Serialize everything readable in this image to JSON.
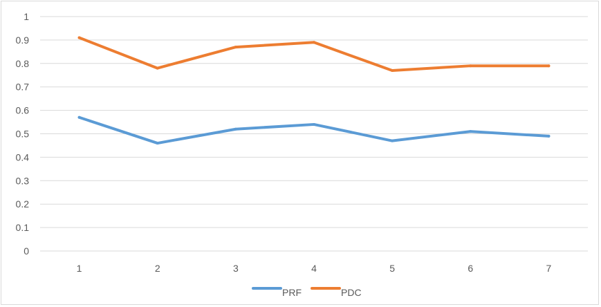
{
  "chart_data": {
    "type": "line",
    "title": "",
    "xlabel": "",
    "ylabel": "",
    "categories": [
      "1",
      "2",
      "3",
      "4",
      "5",
      "6",
      "7"
    ],
    "ylim": [
      0,
      1
    ],
    "yticks": [
      "0",
      "0.1",
      "0.2",
      "0.3",
      "0.4",
      "0.5",
      "0.6",
      "0.7",
      "0.8",
      "0.9",
      "1"
    ],
    "grid": "horizontal",
    "legend_position": "bottom",
    "series": [
      {
        "name": "PRF",
        "color": "#5b9bd5",
        "values": [
          0.57,
          0.46,
          0.52,
          0.54,
          0.47,
          0.51,
          0.49
        ]
      },
      {
        "name": "PDC",
        "color": "#ed7d31",
        "values": [
          0.91,
          0.78,
          0.87,
          0.89,
          0.77,
          0.79,
          0.79
        ]
      }
    ]
  }
}
